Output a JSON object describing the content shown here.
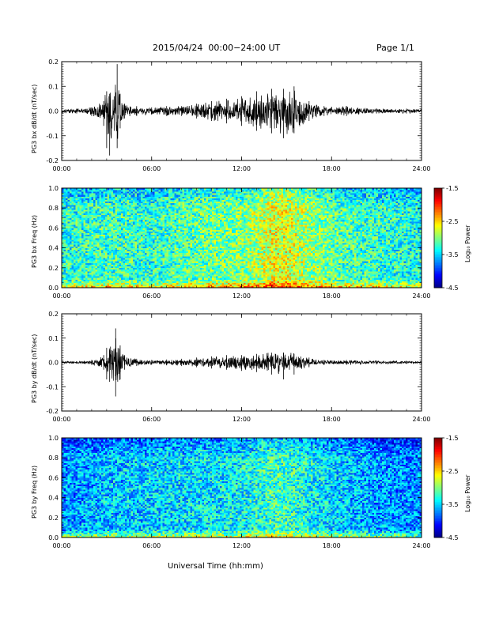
{
  "header": {
    "title": "2015/04/24  00:00−24:00 UT",
    "page": "Page 1/1"
  },
  "x_axis_label": "Universal Time (hh:mm)",
  "chart_data": [
    {
      "type": "line",
      "ylabel": "PG3 bx dB/dt (nT/sec)",
      "xlim": [
        0,
        24
      ],
      "ylim": [
        -0.2,
        0.2
      ],
      "x_ticks": [
        "00:00",
        "06:00",
        "12:00",
        "18:00",
        "24:00"
      ],
      "y_ticks": [
        "-0.2",
        "-0.1",
        "0.0",
        "0.1",
        "0.2"
      ],
      "envelope": {
        "x": [
          0,
          1,
          2,
          2.8,
          3.0,
          3.2,
          3.5,
          3.7,
          3.9,
          4.2,
          5,
          6,
          7,
          8,
          9,
          10,
          11,
          12,
          13,
          14,
          14.8,
          15.5,
          16.5,
          17.5,
          19,
          21,
          23,
          24
        ],
        "upper": [
          0.01,
          0.01,
          0.015,
          0.04,
          0.08,
          0.07,
          0.06,
          0.19,
          0.07,
          0.03,
          0.02,
          0.015,
          0.02,
          0.02,
          0.03,
          0.04,
          0.05,
          0.06,
          0.08,
          0.09,
          0.09,
          0.1,
          0.04,
          0.02,
          0.02,
          0.01,
          0.01,
          0.01
        ],
        "lower": [
          -0.01,
          -0.01,
          -0.02,
          -0.06,
          -0.15,
          -0.18,
          -0.08,
          -0.15,
          -0.07,
          -0.03,
          -0.02,
          -0.015,
          -0.02,
          -0.02,
          -0.03,
          -0.04,
          -0.05,
          -0.06,
          -0.08,
          -0.09,
          -0.11,
          -0.09,
          -0.04,
          -0.02,
          -0.02,
          -0.01,
          -0.01,
          -0.01
        ]
      }
    },
    {
      "type": "heatmap",
      "ylabel": "PG3 bx Freq (Hz)",
      "xlim": [
        0,
        24
      ],
      "ylim": [
        0.0,
        1.0
      ],
      "x_ticks": [
        "00:00",
        "06:00",
        "12:00",
        "18:00",
        "24:00"
      ],
      "y_ticks": [
        "0.0",
        "0.2",
        "0.4",
        "0.6",
        "0.8",
        "1.0"
      ],
      "colorbar": {
        "label": "Log₁₀ Power",
        "ticks": [
          "-1.5",
          "-2.5",
          "-3.5",
          "-4.5"
        ],
        "range": [
          -4.5,
          -1.5
        ]
      },
      "activity_profile": {
        "x": [
          0,
          3,
          6,
          9,
          12,
          13,
          14,
          15,
          16,
          18,
          21,
          24
        ],
        "level": [
          -3.3,
          -3.2,
          -3.25,
          -3.1,
          -3.0,
          -2.9,
          -2.7,
          -2.7,
          -2.85,
          -3.1,
          -3.25,
          -3.35
        ]
      }
    },
    {
      "type": "line",
      "ylabel": "PG3 by dB/dt (nT/sec)",
      "xlim": [
        0,
        24
      ],
      "ylim": [
        -0.2,
        0.2
      ],
      "x_ticks": [
        "00:00",
        "06:00",
        "12:00",
        "18:00",
        "24:00"
      ],
      "y_ticks": [
        "-0.2",
        "-0.1",
        "0.0",
        "0.1",
        "0.2"
      ],
      "envelope": {
        "x": [
          0,
          1,
          2,
          2.8,
          3.0,
          3.2,
          3.6,
          3.9,
          4.2,
          5,
          6,
          7,
          8,
          9,
          10,
          11,
          12,
          13,
          14,
          14.8,
          15.5,
          16.5,
          17.5,
          19,
          21,
          23,
          24
        ],
        "upper": [
          0.005,
          0.005,
          0.01,
          0.03,
          0.06,
          0.05,
          0.14,
          0.07,
          0.03,
          0.015,
          0.01,
          0.012,
          0.015,
          0.02,
          0.025,
          0.03,
          0.03,
          0.035,
          0.04,
          0.04,
          0.035,
          0.02,
          0.01,
          0.01,
          0.008,
          0.006,
          0.005
        ],
        "lower": [
          -0.005,
          -0.005,
          -0.01,
          -0.03,
          -0.07,
          -0.08,
          -0.14,
          -0.07,
          -0.03,
          -0.015,
          -0.01,
          -0.012,
          -0.015,
          -0.02,
          -0.025,
          -0.03,
          -0.035,
          -0.04,
          -0.05,
          -0.07,
          -0.05,
          -0.02,
          -0.01,
          -0.01,
          -0.008,
          -0.006,
          -0.005
        ]
      }
    },
    {
      "type": "heatmap",
      "ylabel": "PG3 by Freq (Hz)",
      "xlim": [
        0,
        24
      ],
      "ylim": [
        0.0,
        1.0
      ],
      "x_ticks": [
        "00:00",
        "06:00",
        "12:00",
        "18:00",
        "24:00"
      ],
      "y_ticks": [
        "0.0",
        "0.2",
        "0.4",
        "0.6",
        "0.8",
        "1.0"
      ],
      "colorbar": {
        "label": "Log₁₀ Power",
        "ticks": [
          "-1.5",
          "-2.5",
          "-3.5",
          "-4.5"
        ],
        "range": [
          -4.5,
          -1.5
        ]
      },
      "activity_profile": {
        "x": [
          0,
          3,
          6,
          9,
          12,
          13,
          14,
          15,
          16,
          18,
          21,
          24
        ],
        "level": [
          -3.7,
          -3.55,
          -3.5,
          -3.45,
          -3.4,
          -3.3,
          -3.2,
          -3.2,
          -3.3,
          -3.5,
          -3.65,
          -3.75
        ]
      }
    }
  ]
}
